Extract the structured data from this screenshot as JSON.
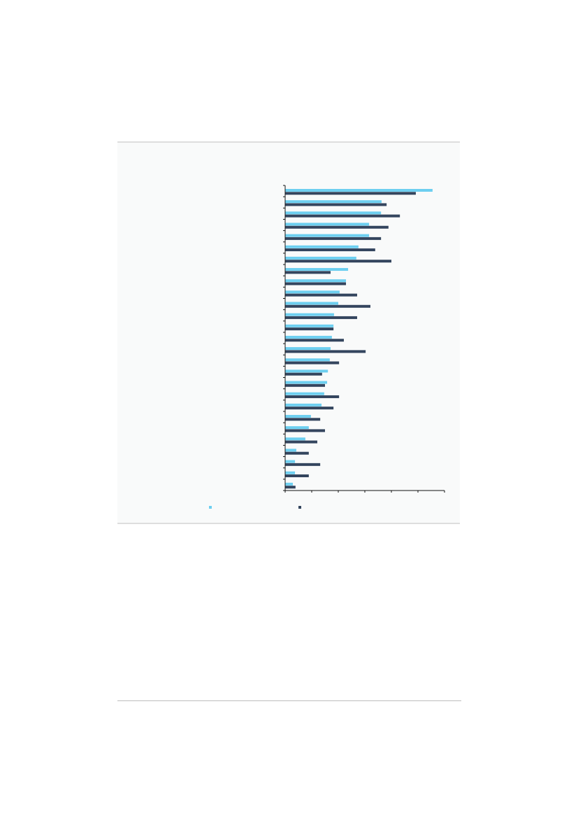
{
  "chart_data": {
    "type": "bar",
    "orientation": "horizontal",
    "title": "",
    "xlabel": "",
    "ylabel": "",
    "xlim": [
      0,
      6
    ],
    "x_ticks": 6,
    "grid": false,
    "legend": "bottom",
    "categories": [
      "",
      "",
      "",
      "",
      "",
      "",
      "",
      "",
      "",
      "",
      "",
      "",
      "",
      "",
      "",
      "",
      "",
      "",
      "",
      "",
      "",
      "",
      "",
      "",
      "",
      "",
      ""
    ],
    "series": [
      {
        "color": "#6dcff0",
        "values": [
          5.55,
          3.63,
          3.61,
          3.16,
          3.16,
          2.76,
          2.68,
          2.37,
          2.29,
          2.05,
          2.0,
          1.84,
          1.82,
          1.76,
          1.71,
          1.68,
          1.61,
          1.58,
          1.47,
          1.37,
          0.97,
          0.89,
          0.76,
          0.42,
          0.37,
          0.37,
          0.29
        ]
      },
      {
        "color": "#34455e",
        "values": [
          4.92,
          3.82,
          4.32,
          3.89,
          3.61,
          3.39,
          4.0,
          1.71,
          2.29,
          2.71,
          3.21,
          2.71,
          1.82,
          2.21,
          3.03,
          2.03,
          1.39,
          1.5,
          2.03,
          1.82,
          1.32,
          1.5,
          1.21,
          0.89,
          1.32,
          0.89,
          0.39
        ]
      }
    ]
  }
}
